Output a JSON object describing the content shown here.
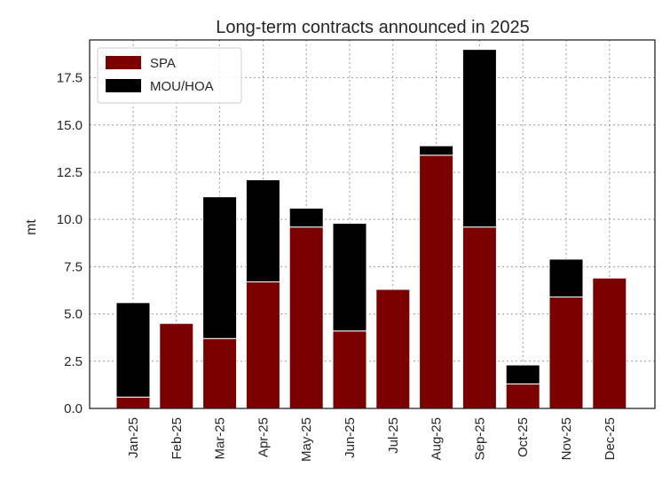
{
  "chart_data": {
    "type": "bar",
    "stacked": true,
    "title": "Long-term contracts announced in 2025",
    "xlabel": "",
    "ylabel": "mt",
    "ylim": [
      0,
      19.5
    ],
    "yticks": [
      "0.0",
      "2.5",
      "5.0",
      "7.5",
      "10.0",
      "12.5",
      "15.0",
      "17.5"
    ],
    "ytick_values": [
      0,
      2.5,
      5,
      7.5,
      10,
      12.5,
      15,
      17.5
    ],
    "grid": true,
    "legend_position": "top-left",
    "categories": [
      "Jan-25",
      "Feb-25",
      "Mar-25",
      "Apr-25",
      "May-25",
      "Jun-25",
      "Jul-25",
      "Aug-25",
      "Sep-25",
      "Oct-25",
      "Nov-25",
      "Dec-25"
    ],
    "series": [
      {
        "name": "SPA",
        "color": "#7b0000",
        "values": [
          0.6,
          4.5,
          3.7,
          6.7,
          9.6,
          4.1,
          6.3,
          13.4,
          9.6,
          1.3,
          5.9,
          6.9
        ]
      },
      {
        "name": "MOU/HOA",
        "color": "#000000",
        "values": [
          5.0,
          0,
          7.5,
          5.4,
          1.0,
          5.7,
          0,
          0.5,
          9.4,
          1.0,
          2.0,
          0
        ]
      }
    ]
  }
}
